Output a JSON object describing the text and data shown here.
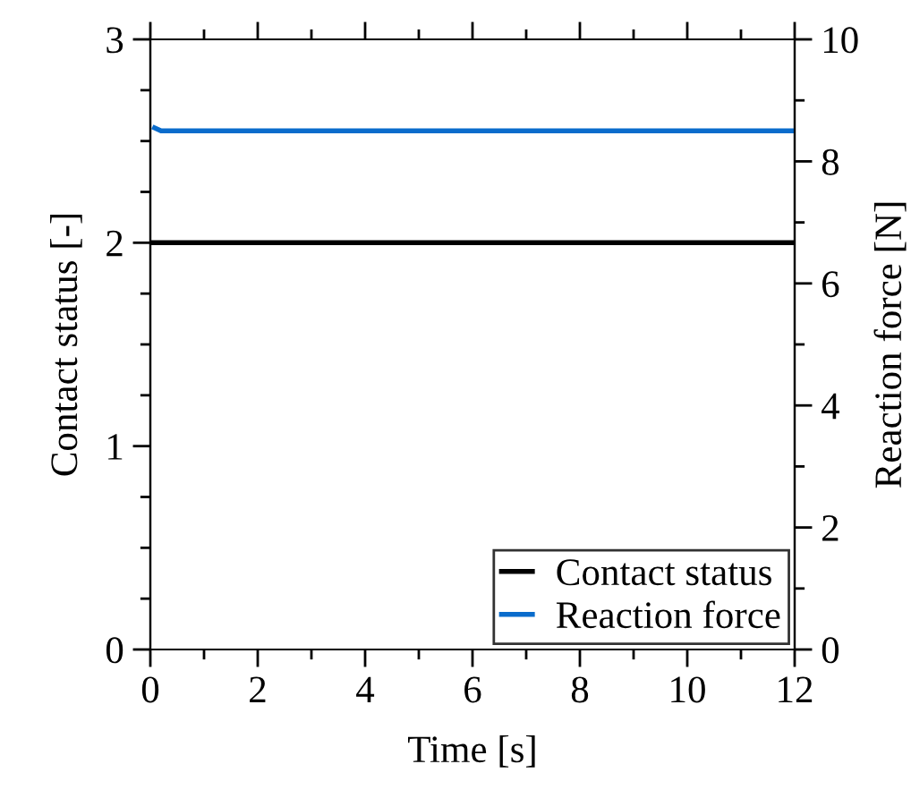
{
  "chart_data": {
    "type": "line",
    "xlabel": "Time [s]",
    "ylabel": "Contact status [-]",
    "y2label": "Reaction force [N]",
    "series": [
      {
        "name": "Contact status",
        "color": "#000000",
        "x": [
          0,
          12
        ],
        "values": [
          2,
          2
        ]
      },
      {
        "name": "Reaction force",
        "color": "#0a6ccc",
        "axis": "y2",
        "x": [
          0.08,
          0.2,
          12
        ],
        "values": [
          8.55,
          8.5,
          8.5
        ]
      }
    ],
    "xlim": [
      0,
      12
    ],
    "xticks": [
      0,
      {
        "value": 1,
        "label": null
      },
      2,
      {
        "value": 3,
        "label": null
      },
      4,
      {
        "value": 5,
        "label": null
      },
      6,
      {
        "value": 7,
        "label": null
      },
      8,
      {
        "value": 9,
        "label": null
      },
      10,
      {
        "value": 11,
        "label": null
      },
      12
    ],
    "ylim": [
      0,
      3
    ],
    "yticks": [
      0,
      {
        "value": 0.25,
        "label": null
      },
      {
        "value": 0.5,
        "label": null
      },
      {
        "value": 0.75,
        "label": null
      },
      1,
      {
        "value": 1.25,
        "label": null
      },
      {
        "value": 1.5,
        "label": null
      },
      {
        "value": 1.75,
        "label": null
      },
      2,
      {
        "value": 2.25,
        "label": null
      },
      {
        "value": 2.5,
        "label": null
      },
      {
        "value": 2.75,
        "label": null
      },
      3
    ],
    "y2lim": [
      0,
      10
    ],
    "y2ticks": [
      0,
      {
        "value": 1,
        "label": null
      },
      2,
      {
        "value": 3,
        "label": null
      },
      4,
      {
        "value": 5,
        "label": null
      },
      6,
      {
        "value": 7,
        "label": null
      },
      8,
      {
        "value": 9,
        "label": null
      },
      10
    ],
    "legend": "bottom right",
    "grid": false,
    "line_style": "solid",
    "marker": "none"
  }
}
